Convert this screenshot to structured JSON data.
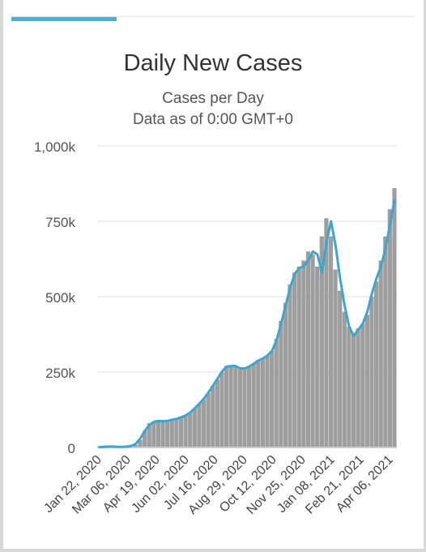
{
  "header": {
    "tab_indicator_color": "#3cb8e0"
  },
  "chart_data": {
    "type": "bar",
    "title": "Daily New Cases",
    "subtitle": "Cases per Day",
    "subtitle2": "Data as of 0:00 GMT+0",
    "xlabel": "",
    "ylabel": "",
    "ylim": [
      0,
      1000000
    ],
    "y_ticks": [
      {
        "value": 0,
        "label": "0"
      },
      {
        "value": 250000,
        "label": "250k"
      },
      {
        "value": 500000,
        "label": "500k"
      },
      {
        "value": 750000,
        "label": "750k"
      },
      {
        "value": 1000000,
        "label": "1,000k"
      }
    ],
    "x_tick_labels": [
      "Jan 22, 2020",
      "Mar 06, 2020",
      "Apr 19, 2020",
      "Jun 02, 2020",
      "Jul 16, 2020",
      "Aug 29, 2020",
      "Oct 12, 2020",
      "Nov 25, 2020",
      "Jan 08, 2021",
      "Feb 21, 2021",
      "Apr 06, 2021"
    ],
    "grid": true,
    "colors": {
      "bars": "#9e9e9e",
      "average_line": "#3ca6cf",
      "grid": "#e0e0e0",
      "axis_baseline": "#c9c9e6"
    },
    "series": [
      {
        "type": "bar",
        "weekly_values": [
          1000,
          2000,
          3000,
          3000,
          2000,
          2000,
          3000,
          3000,
          8000,
          25000,
          55000,
          80000,
          85000,
          85000,
          85000,
          88000,
          92000,
          95000,
          100000,
          105000,
          115000,
          130000,
          145000,
          160000,
          180000,
          205000,
          225000,
          250000,
          270000,
          270000,
          270000,
          260000,
          265000,
          270000,
          280000,
          290000,
          295000,
          305000,
          320000,
          360000,
          420000,
          480000,
          540000,
          580000,
          600000,
          620000,
          650000,
          640000,
          600000,
          700000,
          760000,
          700000,
          590000,
          520000,
          450000,
          400000,
          380000,
          395000,
          410000,
          440000,
          500000,
          550000,
          620000,
          700000,
          790000,
          860000
        ]
      },
      {
        "type": "line",
        "weekly_values": [
          1000,
          2000,
          3000,
          3000,
          2000,
          2000,
          3000,
          5000,
          12000,
          30000,
          55000,
          75000,
          85000,
          88000,
          87000,
          88000,
          92000,
          95000,
          100000,
          106000,
          116000,
          130000,
          145000,
          162000,
          182000,
          205000,
          228000,
          252000,
          268000,
          270000,
          270000,
          262000,
          262000,
          268000,
          278000,
          288000,
          295000,
          305000,
          320000,
          355000,
          410000,
          470000,
          530000,
          575000,
          595000,
          600000,
          620000,
          650000,
          640000,
          580000,
          680000,
          750000,
          670000,
          560000,
          470000,
          400000,
          370000,
          390000,
          410000,
          450000,
          510000,
          560000,
          600000,
          660000,
          740000,
          820000
        ]
      }
    ]
  }
}
